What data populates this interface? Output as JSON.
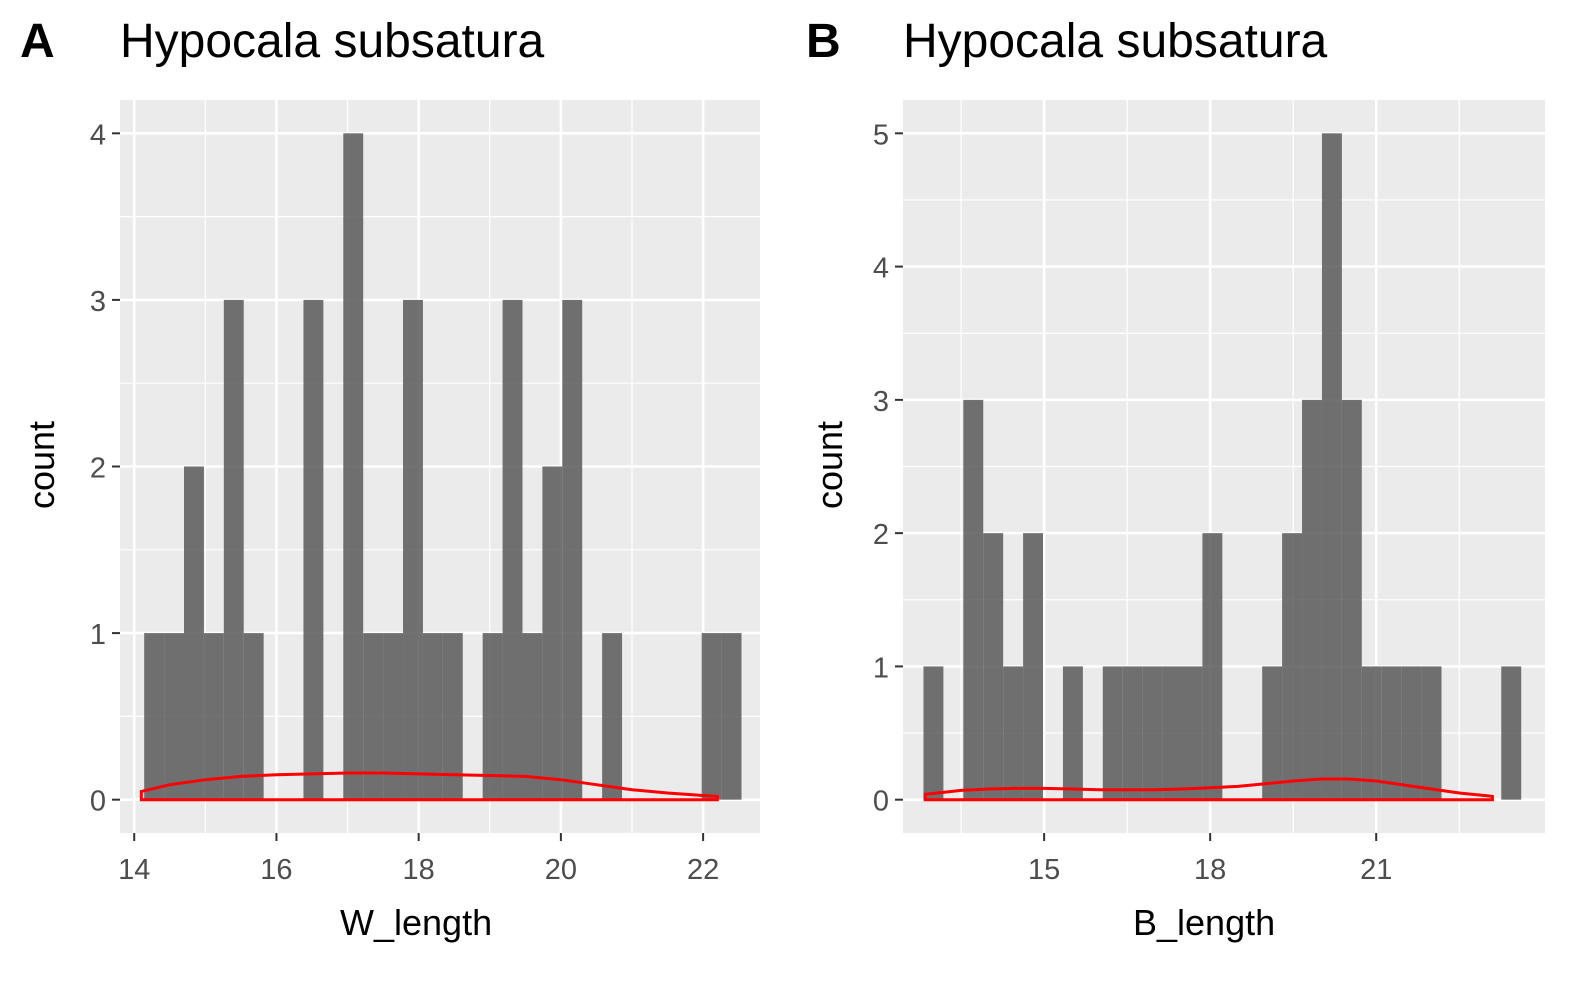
{
  "chart_data": [
    {
      "panel_letter": "A",
      "type": "bar",
      "title": "Hypocala subsatura",
      "xlabel": "W_length",
      "ylabel": "count",
      "xlim": [
        13.8,
        22.8
      ],
      "ylim": [
        -0.2,
        4.2
      ],
      "xticks": [
        14,
        16,
        18,
        20,
        22
      ],
      "yticks": [
        0,
        1,
        2,
        3,
        4
      ],
      "grid": true,
      "bin_width": 0.28,
      "bars": [
        {
          "x": 14.28,
          "count": 1
        },
        {
          "x": 14.56,
          "count": 1
        },
        {
          "x": 14.84,
          "count": 2
        },
        {
          "x": 15.12,
          "count": 1
        },
        {
          "x": 15.4,
          "count": 3
        },
        {
          "x": 15.68,
          "count": 1
        },
        {
          "x": 16.52,
          "count": 3
        },
        {
          "x": 17.08,
          "count": 4
        },
        {
          "x": 17.36,
          "count": 1
        },
        {
          "x": 17.64,
          "count": 1
        },
        {
          "x": 17.92,
          "count": 3
        },
        {
          "x": 18.2,
          "count": 1
        },
        {
          "x": 18.48,
          "count": 1
        },
        {
          "x": 19.04,
          "count": 1
        },
        {
          "x": 19.32,
          "count": 3
        },
        {
          "x": 19.6,
          "count": 1
        },
        {
          "x": 19.88,
          "count": 2
        },
        {
          "x": 20.16,
          "count": 3
        },
        {
          "x": 20.72,
          "count": 1
        },
        {
          "x": 22.12,
          "count": 1
        },
        {
          "x": 22.4,
          "count": 1
        }
      ],
      "bar_color": "#595959",
      "density_curve": {
        "color": "#ff0000",
        "x": [
          14.1,
          14.5,
          15.0,
          15.5,
          16.0,
          16.5,
          17.0,
          17.5,
          18.0,
          18.5,
          19.0,
          19.5,
          20.0,
          20.5,
          21.0,
          21.5,
          22.0,
          22.2
        ],
        "y": [
          0.05,
          0.09,
          0.12,
          0.14,
          0.15,
          0.155,
          0.16,
          0.16,
          0.155,
          0.15,
          0.145,
          0.14,
          0.12,
          0.09,
          0.06,
          0.04,
          0.025,
          0.02
        ]
      }
    },
    {
      "panel_letter": "B",
      "type": "bar",
      "title": "Hypocala subsatura",
      "xlabel": "B_length",
      "ylabel": "count",
      "xlim": [
        12.45,
        24.05
      ],
      "ylim": [
        -0.25,
        5.25
      ],
      "xticks": [
        15,
        18,
        21
      ],
      "yticks": [
        0,
        1,
        2,
        3,
        4,
        5
      ],
      "grid": true,
      "bin_width": 0.36,
      "bars": [
        {
          "x": 13.0,
          "count": 1
        },
        {
          "x": 13.72,
          "count": 3
        },
        {
          "x": 14.08,
          "count": 2
        },
        {
          "x": 14.44,
          "count": 1
        },
        {
          "x": 14.8,
          "count": 2
        },
        {
          "x": 15.52,
          "count": 1
        },
        {
          "x": 16.24,
          "count": 1
        },
        {
          "x": 16.6,
          "count": 1
        },
        {
          "x": 16.96,
          "count": 1
        },
        {
          "x": 17.32,
          "count": 1
        },
        {
          "x": 17.68,
          "count": 1
        },
        {
          "x": 18.04,
          "count": 2
        },
        {
          "x": 19.12,
          "count": 1
        },
        {
          "x": 19.48,
          "count": 2
        },
        {
          "x": 19.84,
          "count": 3
        },
        {
          "x": 20.2,
          "count": 5
        },
        {
          "x": 20.56,
          "count": 3
        },
        {
          "x": 20.92,
          "count": 1
        },
        {
          "x": 21.28,
          "count": 1
        },
        {
          "x": 21.64,
          "count": 1
        },
        {
          "x": 22.0,
          "count": 1
        },
        {
          "x": 23.44,
          "count": 1
        }
      ],
      "bar_color": "#595959",
      "density_curve": {
        "color": "#ff0000",
        "x": [
          12.85,
          13.5,
          14.0,
          14.5,
          15.0,
          15.5,
          16.0,
          16.5,
          17.0,
          17.5,
          18.0,
          18.5,
          19.0,
          19.5,
          20.0,
          20.5,
          21.0,
          21.5,
          22.0,
          22.5,
          23.0,
          23.1
        ],
        "y": [
          0.04,
          0.07,
          0.08,
          0.085,
          0.085,
          0.08,
          0.075,
          0.075,
          0.075,
          0.08,
          0.09,
          0.1,
          0.12,
          0.14,
          0.155,
          0.155,
          0.14,
          0.11,
          0.08,
          0.05,
          0.03,
          0.025
        ]
      }
    }
  ]
}
